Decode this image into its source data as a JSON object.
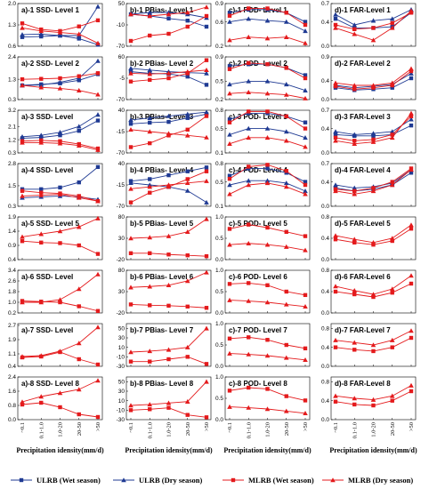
{
  "chart_data": {
    "type": "line",
    "layout": "8 rows x 4 columns of small-multiple line charts",
    "categories": [
      "~0.1",
      "0.1-1.0",
      "1.0-20",
      "20-50",
      ">50"
    ],
    "xlabel": "Precipitation idensity(mm/d)",
    "legend_position": "bottom",
    "series_names": [
      "ULRB (Wet season)",
      "ULRB (Dry season)",
      "MLRB (Wet season)",
      "MLRB (Dry season)"
    ],
    "colors": {
      "ULRB (Wet season)": "#1f3a93",
      "ULRB (Dry season)": "#1f3a93",
      "MLRB (Wet season)": "#e41a1c",
      "MLRB (Dry season)": "#e41a1c"
    },
    "markers": {
      "ULRB (Wet season)": "square",
      "ULRB (Dry season)": "triangle",
      "MLRB (Wet season)": "square",
      "MLRB (Dry season)": "triangle"
    },
    "panels": [
      {
        "title": "a)-1 SSD- Level 1",
        "ylim": [
          0.6,
          2.0
        ],
        "yticks": [
          "0.6",
          "1.3",
          "2.0"
        ],
        "series": [
          [
            0.9,
            0.92,
            0.95,
            0.85,
            0.65
          ],
          [
            0.98,
            1.0,
            0.95,
            0.95,
            1.9
          ],
          [
            1.35,
            1.15,
            1.1,
            1.25,
            1.45
          ],
          [
            1.2,
            1.1,
            1.05,
            1.0,
            0.7
          ]
        ]
      },
      {
        "title": "b)-1 PBias- Level 1",
        "ylim": [
          -70,
          50
        ],
        "yticks": [
          "-70",
          "-10",
          "50"
        ],
        "series": [
          [
            20,
            15,
            8,
            2,
            -15
          ],
          [
            20,
            25,
            25,
            20,
            10
          ],
          [
            -55,
            -40,
            -35,
            -15,
            15
          ],
          [
            20,
            15,
            20,
            25,
            40
          ]
        ]
      },
      {
        "title": "c)-1 POD- Level 1",
        "ylim": [
          0.2,
          0.9
        ],
        "yticks": [
          "0.2",
          "0.6",
          "0.9"
        ],
        "series": [
          [
            0.75,
            0.8,
            0.8,
            0.75,
            0.6
          ],
          [
            0.6,
            0.65,
            0.62,
            0.6,
            0.45
          ],
          [
            0.7,
            0.82,
            0.82,
            0.75,
            0.55
          ],
          [
            0.3,
            0.35,
            0.33,
            0.35,
            0.25
          ]
        ]
      },
      {
        "title": "d)-1 FAR-Level 1",
        "ylim": [
          0.0,
          0.7
        ],
        "yticks": [
          "0.0",
          "0.4",
          "0.7"
        ],
        "series": [
          [
            0.45,
            0.3,
            0.3,
            0.32,
            0.55
          ],
          [
            0.52,
            0.35,
            0.42,
            0.45,
            0.6
          ],
          [
            0.35,
            0.28,
            0.3,
            0.38,
            0.55
          ],
          [
            0.3,
            0.2,
            0.1,
            0.3,
            0.58
          ]
        ]
      },
      {
        "title": "a)-2 SSD- Level 2",
        "ylim": [
          0.3,
          2.4
        ],
        "yticks": [
          "0.3",
          "1.3",
          "2.4"
        ],
        "series": [
          [
            1.0,
            1.05,
            1.1,
            1.25,
            1.55
          ],
          [
            1.0,
            1.02,
            1.15,
            1.35,
            2.2
          ],
          [
            1.3,
            1.32,
            1.35,
            1.45,
            1.6
          ],
          [
            1.0,
            0.9,
            0.85,
            0.75,
            0.55
          ]
        ]
      },
      {
        "title": "b)-2 PBias- Level 2",
        "ylim": [
          -70,
          60
        ],
        "yticks": [
          "-70",
          "-5",
          "60"
        ],
        "series": [
          [
            15,
            10,
            8,
            0,
            -25
          ],
          [
            25,
            20,
            15,
            12,
            10
          ],
          [
            -15,
            -10,
            -5,
            10,
            50
          ],
          [
            10,
            8,
            10,
            15,
            20
          ]
        ]
      },
      {
        "title": "c)-2 POD- Level 2",
        "ylim": [
          0.2,
          0.9
        ],
        "yticks": [
          "0.2",
          "0.5",
          "0.9"
        ],
        "series": [
          [
            0.75,
            0.78,
            0.78,
            0.72,
            0.6
          ],
          [
            0.45,
            0.5,
            0.5,
            0.45,
            0.35
          ],
          [
            0.7,
            0.8,
            0.78,
            0.72,
            0.55
          ],
          [
            0.3,
            0.32,
            0.3,
            0.28,
            0.22
          ]
        ]
      },
      {
        "title": "d)-2 FAR-Level 2",
        "ylim": [
          0.0,
          0.9
        ],
        "yticks": [
          "0.0",
          "0.4",
          "0.9"
        ],
        "series": [
          [
            0.25,
            0.2,
            0.22,
            0.25,
            0.45
          ],
          [
            0.3,
            0.25,
            0.28,
            0.32,
            0.55
          ],
          [
            0.28,
            0.22,
            0.25,
            0.3,
            0.6
          ],
          [
            0.35,
            0.3,
            0.3,
            0.35,
            0.65
          ]
        ]
      },
      {
        "title": "a)-3 SSD-   Level",
        "ylim": [
          0.3,
          3.2
        ],
        "yticks": [
          "0.3",
          "1.2",
          "2.1",
          "3.2"
        ],
        "series": [
          [
            1.3,
            1.35,
            1.5,
            1.8,
            2.5
          ],
          [
            1.4,
            1.5,
            1.7,
            2.1,
            2.9
          ],
          [
            1.1,
            1.15,
            1.1,
            0.9,
            0.6
          ],
          [
            1.0,
            1.0,
            0.95,
            0.8,
            0.5
          ]
        ]
      },
      {
        "title": "b)-3 PBias- Level 3",
        "ylim": [
          -70,
          40
        ],
        "yticks": [
          "-70",
          "-15",
          "40"
        ],
        "series": [
          [
            5,
            8,
            10,
            20,
            30
          ],
          [
            15,
            20,
            25,
            30,
            35
          ],
          [
            -55,
            -45,
            -25,
            -10,
            25
          ],
          [
            -10,
            -15,
            -20,
            -25,
            -30
          ]
        ]
      },
      {
        "title": "c)-3 POD- Level 3",
        "ylim": [
          0.1,
          0.8
        ],
        "yticks": [
          "0.1",
          "0.5",
          "0.8"
        ],
        "series": [
          [
            0.65,
            0.75,
            0.75,
            0.7,
            0.6
          ],
          [
            0.4,
            0.5,
            0.5,
            0.45,
            0.35
          ],
          [
            0.6,
            0.78,
            0.78,
            0.7,
            0.5
          ],
          [
            0.25,
            0.35,
            0.35,
            0.3,
            0.2
          ]
        ]
      },
      {
        "title": "d)-3 FAR-Level 3",
        "ylim": [
          0.0,
          0.7
        ],
        "yticks": [
          "0.0",
          "0.4",
          "0.7"
        ],
        "series": [
          [
            0.3,
            0.28,
            0.28,
            0.3,
            0.45
          ],
          [
            0.35,
            0.3,
            0.32,
            0.35,
            0.55
          ],
          [
            0.25,
            0.2,
            0.22,
            0.3,
            0.6
          ],
          [
            0.2,
            0.15,
            0.18,
            0.25,
            0.65
          ]
        ]
      },
      {
        "title": "a)-4 SSD-   Level",
        "ylim": [
          0.3,
          2.8
        ],
        "yticks": [
          "0.3",
          "1.5",
          "2.8"
        ],
        "series": [
          [
            1.3,
            1.3,
            1.4,
            1.7,
            2.6
          ],
          [
            0.8,
            0.85,
            0.9,
            0.85,
            0.7
          ],
          [
            1.2,
            1.1,
            1.05,
            0.9,
            0.6
          ],
          [
            0.9,
            0.95,
            1.0,
            0.8,
            0.6
          ]
        ]
      },
      {
        "title": "b)-4 PBias- Level 4",
        "ylim": [
          -70,
          40
        ],
        "yticks": [
          "-70",
          "-15",
          "40"
        ],
        "series": [
          [
            -5,
            0,
            10,
            20,
            30
          ],
          [
            -10,
            -15,
            -20,
            -30,
            -60
          ],
          [
            -60,
            -35,
            -20,
            0,
            20
          ],
          [
            -25,
            -20,
            -15,
            -10,
            -5
          ]
        ]
      },
      {
        "title": "c)-4 POD- Level 4",
        "ylim": [
          0.1,
          0.8
        ],
        "yticks": [
          "0.1",
          "0.5",
          "0.8"
        ],
        "series": [
          [
            0.6,
            0.72,
            0.72,
            0.65,
            0.5
          ],
          [
            0.45,
            0.52,
            0.52,
            0.48,
            0.35
          ],
          [
            0.55,
            0.75,
            0.78,
            0.68,
            0.45
          ],
          [
            0.3,
            0.45,
            0.48,
            0.42,
            0.3
          ]
        ]
      },
      {
        "title": "d)-4 FAR-Level 4",
        "ylim": [
          0.0,
          0.7
        ],
        "yticks": [
          "0.0",
          "0.4",
          "0.7"
        ],
        "series": [
          [
            0.3,
            0.25,
            0.28,
            0.35,
            0.55
          ],
          [
            0.35,
            0.3,
            0.32,
            0.38,
            0.6
          ],
          [
            0.28,
            0.25,
            0.3,
            0.4,
            0.62
          ],
          [
            0.25,
            0.2,
            0.25,
            0.35,
            0.6
          ]
        ]
      },
      {
        "title": "a)-5 SSD- Level 5",
        "ylim": [
          0.4,
          1.9
        ],
        "yticks": [
          "0.4",
          "0.9",
          "1.4",
          "1.9"
        ],
        "series": [
          null,
          null,
          [
            1.05,
            1.0,
            0.98,
            0.9,
            0.6
          ],
          [
            1.2,
            1.3,
            1.4,
            1.55,
            1.85
          ]
        ]
      },
      {
        "title": "b)-5 PBias- Level 5",
        "ylim": [
          -20,
          80
        ],
        "yticks": [
          "-20",
          "30",
          "80"
        ],
        "series": [
          null,
          null,
          [
            -5,
            -5,
            -8,
            -10,
            -12
          ],
          [
            30,
            32,
            35,
            45,
            75
          ]
        ]
      },
      {
        "title": "c)-5 POD- Level 5",
        "ylim": [
          0.0,
          1.0
        ],
        "yticks": [
          "0.0",
          "0.5",
          "1.0"
        ],
        "series": [
          null,
          null,
          [
            0.72,
            0.82,
            0.75,
            0.65,
            0.55
          ],
          [
            0.35,
            0.38,
            0.35,
            0.3,
            0.22
          ]
        ]
      },
      {
        "title": "d)-5 FAR-Level 5",
        "ylim": [
          0.0,
          0.8
        ],
        "yticks": [
          "0.0",
          "0.4",
          "0.8"
        ],
        "series": [
          null,
          null,
          [
            0.38,
            0.32,
            0.28,
            0.35,
            0.58
          ],
          [
            0.45,
            0.38,
            0.32,
            0.4,
            0.65
          ]
        ]
      },
      {
        "title": "a)-6 SSD-   Level",
        "ylim": [
          0.2,
          3.4
        ],
        "yticks": [
          "0.2",
          "1.0",
          "1.8",
          "2.6",
          "3.4"
        ],
        "series": [
          null,
          null,
          [
            1.1,
            1.05,
            1.0,
            0.7,
            0.35
          ],
          [
            1.0,
            1.0,
            1.2,
            2.0,
            3.1
          ]
        ]
      },
      {
        "title": "b)-6 PBias- Level 6",
        "ylim": [
          -20,
          80
        ],
        "yticks": [
          "-20",
          "30",
          "80"
        ],
        "series": [
          null,
          null,
          [
            0,
            -2,
            -3,
            -5,
            -8
          ],
          [
            40,
            42,
            45,
            55,
            75
          ]
        ]
      },
      {
        "title": "c)-6 POD- Level 6",
        "ylim": [
          0.0,
          1.0
        ],
        "yticks": [
          "0.0",
          "0.5",
          "1.0"
        ],
        "series": [
          null,
          null,
          [
            0.68,
            0.7,
            0.65,
            0.5,
            0.42
          ],
          [
            0.3,
            0.28,
            0.25,
            0.2,
            0.15
          ]
        ]
      },
      {
        "title": "d)-6 FAR-Level 6",
        "ylim": [
          0.0,
          0.8
        ],
        "yticks": [
          "0.0",
          "0.4",
          "0.8"
        ],
        "series": [
          null,
          null,
          [
            0.4,
            0.35,
            0.3,
            0.38,
            0.55
          ],
          [
            0.5,
            0.42,
            0.35,
            0.45,
            0.7
          ]
        ]
      },
      {
        "title": "a)-7 SSD-   Level",
        "ylim": [
          0.4,
          2.8
        ],
        "yticks": [
          "0.4",
          "1.1",
          "1.9",
          "2.7"
        ],
        "series": [
          null,
          null,
          [
            0.9,
            0.95,
            1.2,
            0.8,
            0.5
          ],
          [
            0.95,
            1.0,
            1.25,
            1.7,
            2.6
          ]
        ]
      },
      {
        "title": "b)-7 PBias- Level 7",
        "ylim": [
          -30,
          60
        ],
        "yticks": [
          "-30",
          "-10",
          "10",
          "30",
          "50"
        ],
        "series": [
          null,
          null,
          [
            -20,
            -20,
            -15,
            -10,
            -25
          ],
          [
            0,
            2,
            5,
            10,
            50
          ]
        ]
      },
      {
        "title": "c)-7 POD- Level 7",
        "ylim": [
          0.0,
          1.0
        ],
        "yticks": [
          "0.0",
          "0.5",
          "1.0"
        ],
        "series": [
          null,
          null,
          [
            0.65,
            0.68,
            0.62,
            0.5,
            0.42
          ],
          [
            0.3,
            0.28,
            0.25,
            0.2,
            0.15
          ]
        ]
      },
      {
        "title": "d)-7 FAR-Level 7",
        "ylim": [
          0.0,
          0.9
        ],
        "yticks": [
          "0.0",
          "0.4",
          "0.8"
        ],
        "series": [
          null,
          null,
          [
            0.4,
            0.35,
            0.32,
            0.4,
            0.6
          ],
          [
            0.55,
            0.5,
            0.45,
            0.55,
            0.75
          ]
        ]
      },
      {
        "title": "a)-8 SSD- Level 8",
        "ylim": [
          0.0,
          2.4
        ],
        "yticks": [
          "0.0",
          "0.8",
          "1.6",
          "2.4"
        ],
        "series": [
          null,
          null,
          [
            0.85,
            0.95,
            0.7,
            0.3,
            0.15
          ],
          [
            1.0,
            1.3,
            1.5,
            1.7,
            2.2
          ]
        ]
      },
      {
        "title": "b)-8 PBias- Level 8",
        "ylim": [
          -30,
          60
        ],
        "yticks": [
          "-30",
          "-10",
          "10",
          "30",
          "50"
        ],
        "series": [
          null,
          null,
          [
            -10,
            -8,
            -5,
            -20,
            -25
          ],
          [
            0,
            2,
            5,
            8,
            50
          ]
        ]
      },
      {
        "title": "c)-8 POD- Level 8",
        "ylim": [
          0.0,
          1.0
        ],
        "yticks": [
          "0.0",
          "0.5",
          "1.0"
        ],
        "series": [
          null,
          null,
          [
            0.68,
            0.75,
            0.72,
            0.55,
            0.45
          ],
          [
            0.3,
            0.28,
            0.25,
            0.2,
            0.15
          ]
        ]
      },
      {
        "title": "d)-8 FAR-Level 8",
        "ylim": [
          0.0,
          0.9
        ],
        "yticks": [
          "0.0",
          "0.4",
          "0.8"
        ],
        "series": [
          null,
          null,
          [
            0.38,
            0.32,
            0.3,
            0.4,
            0.6
          ],
          [
            0.5,
            0.45,
            0.42,
            0.5,
            0.72
          ]
        ]
      }
    ]
  }
}
